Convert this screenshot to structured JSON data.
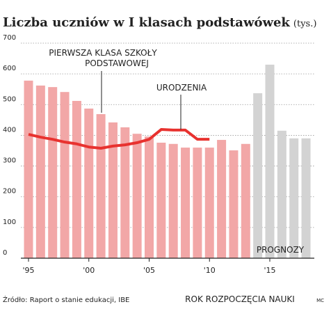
{
  "chart_data": {
    "type": "bar-line",
    "title": "Liczba uczniów w I klasach podstawówek",
    "subtitle": "(tys.)",
    "categories": [
      "'95",
      null,
      null,
      null,
      null,
      "'00",
      null,
      null,
      null,
      null,
      "'05",
      null,
      null,
      null,
      null,
      "'10",
      null,
      null,
      null,
      null,
      "'15",
      null,
      null,
      null
    ],
    "series": [
      {
        "type": "bar",
        "color": "#f2a7a7",
        "values": [
          578,
          562,
          557,
          541,
          512,
          487,
          469,
          442,
          426,
          405,
          396,
          376,
          372,
          360,
          360,
          360,
          385,
          351,
          372,
          null,
          null,
          null,
          null,
          null
        ]
      },
      {
        "type": "bar",
        "color": "#d3d3d3",
        "values": [
          null,
          null,
          null,
          null,
          null,
          null,
          null,
          null,
          null,
          null,
          null,
          null,
          null,
          null,
          null,
          null,
          null,
          null,
          null,
          537,
          630,
          415,
          390,
          390
        ]
      },
      {
        "type": "line",
        "color": "#e8322f",
        "values": [
          403,
          394,
          387,
          378,
          372,
          362,
          358,
          365,
          369,
          376,
          387,
          419,
          417,
          417,
          387,
          387,
          null,
          null,
          null,
          null,
          null,
          null,
          null,
          null
        ]
      }
    ],
    "ylim": [
      0,
      700
    ],
    "yticks": [
      0,
      100,
      200,
      300,
      400,
      500,
      600,
      700
    ],
    "grid": true,
    "annotations": [
      "PIERWSZA KLASA SZKOŁY",
      "PODSTAWOWEJ",
      "URODZENIA",
      "PROGNOZY"
    ],
    "x_label": "ROK ROZPOCZĘCIA NAUKI",
    "source": "Źródło: Raport o stanie edukacji, IBE",
    "credit": "MC"
  }
}
